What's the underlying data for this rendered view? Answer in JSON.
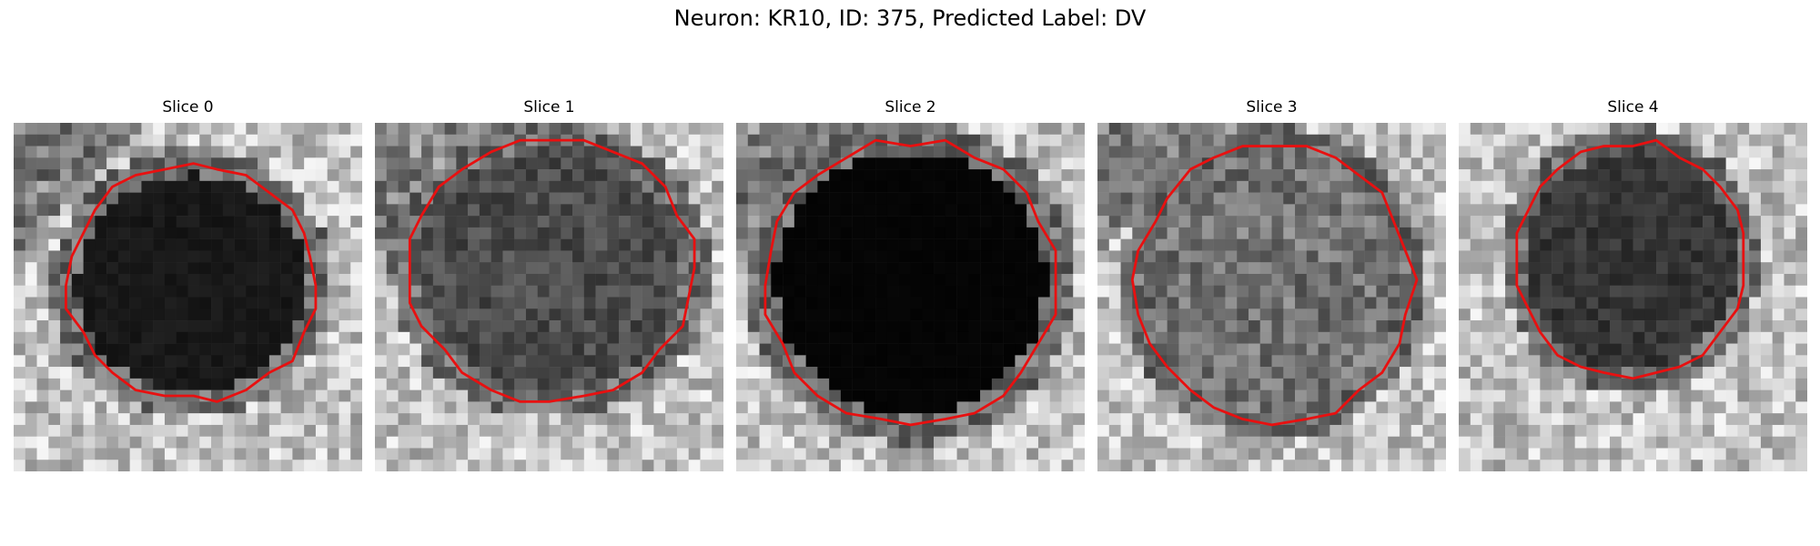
{
  "figure": {
    "title": "Neuron: KR10, ID: 375, Predicted Label: DV"
  },
  "panels": [
    {
      "title": "Slice 0",
      "darkness": 0.92,
      "core": 0.12,
      "dark_corner": "top-left"
    },
    {
      "title": "Slice 1",
      "darkness": 0.72,
      "core": 0.35,
      "dark_corner": "top-left"
    },
    {
      "title": "Slice 2",
      "darkness": 0.98,
      "core": 0.02,
      "dark_corner": "top-left"
    },
    {
      "title": "Slice 3",
      "darkness": 0.55,
      "core": 0.52,
      "dark_corner": "top-left"
    },
    {
      "title": "Slice 4",
      "darkness": 0.8,
      "core": 0.25,
      "dark_corner": "none"
    }
  ],
  "colors": {
    "contour": "#e81010",
    "background": "#ffffff"
  }
}
